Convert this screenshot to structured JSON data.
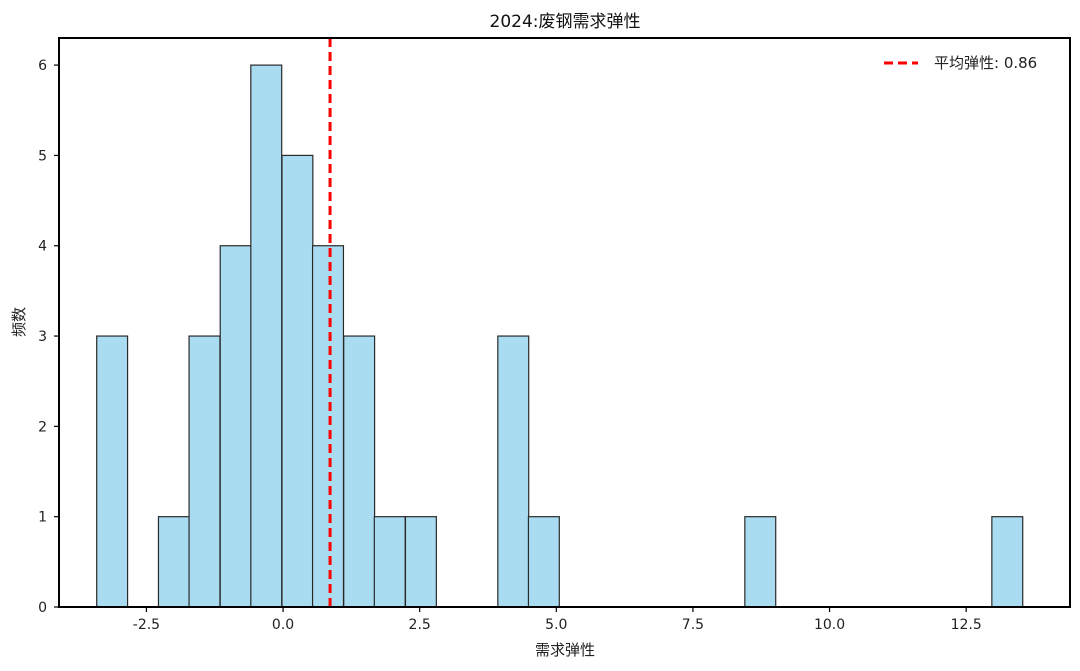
{
  "chart_data": {
    "type": "bar",
    "title": "2024:废钢需求弹性",
    "xlabel": "需求弹性",
    "ylabel": "频数",
    "xlim": [
      -4.1,
      14.4
    ],
    "ylim": [
      0,
      6.3
    ],
    "x_ticks": [
      -2.5,
      0.0,
      2.5,
      5.0,
      7.5,
      10.0,
      12.5
    ],
    "x_tick_labels": [
      "-2.5",
      "0.0",
      "2.5",
      "5.0",
      "7.5",
      "10.0",
      "12.5"
    ],
    "y_ticks": [
      0,
      1,
      2,
      3,
      4,
      5,
      6
    ],
    "y_tick_labels": [
      "0",
      "1",
      "2",
      "3",
      "4",
      "5",
      "6"
    ],
    "bin_width": 0.565,
    "bins": [
      {
        "x0": -3.41,
        "count": 3
      },
      {
        "x0": -2.28,
        "count": 1
      },
      {
        "x0": -1.72,
        "count": 3
      },
      {
        "x0": -1.15,
        "count": 4
      },
      {
        "x0": -0.59,
        "count": 6
      },
      {
        "x0": -0.02,
        "count": 5
      },
      {
        "x0": 0.54,
        "count": 4
      },
      {
        "x0": 1.11,
        "count": 3
      },
      {
        "x0": 1.67,
        "count": 1
      },
      {
        "x0": 2.24,
        "count": 1
      },
      {
        "x0": 3.93,
        "count": 3
      },
      {
        "x0": 4.49,
        "count": 1
      },
      {
        "x0": 8.45,
        "count": 1
      },
      {
        "x0": 12.97,
        "count": 1
      }
    ],
    "bar_color": "#a9dcf0",
    "bar_edge_color": "#2a2a2a",
    "mean_line": {
      "value": 0.86,
      "label": "平均弹性: 0.86",
      "color": "#ff0000"
    },
    "legend_position": "top-right",
    "grid": false
  }
}
